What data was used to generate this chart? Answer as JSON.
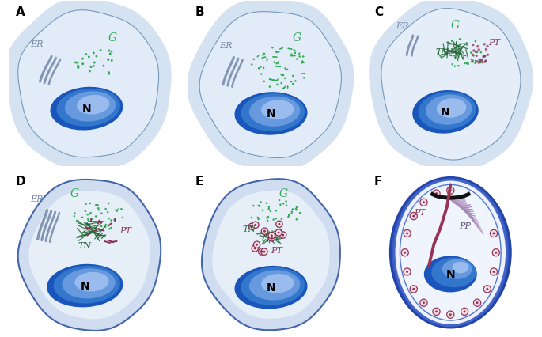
{
  "panel_labels": [
    "A",
    "B",
    "C",
    "D",
    "E",
    "F"
  ],
  "cell_outer_color": "#ccd8ee",
  "cell_outer_glow": "#dce6f4",
  "cell_inner_color": "#e8eff8",
  "cell_white_color": "#f0f4fb",
  "nucleus_dark": "#1a4499",
  "nucleus_mid": "#4477cc",
  "nucleus_light": "#88aadd",
  "nucleus_highlight": "#bbccee",
  "border_color": "#4466aa",
  "border_color_d": "#334488",
  "er_color": "#7788aa",
  "golgi_dot_color": "#33aa55",
  "golgi_small_color": "#55bb77",
  "pt_color": "#883355",
  "pt_dash_color": "#993366",
  "tn_color": "#226633",
  "pp_color": "#9977aa",
  "label_font_size": 8,
  "panel_label_font_size": 11
}
